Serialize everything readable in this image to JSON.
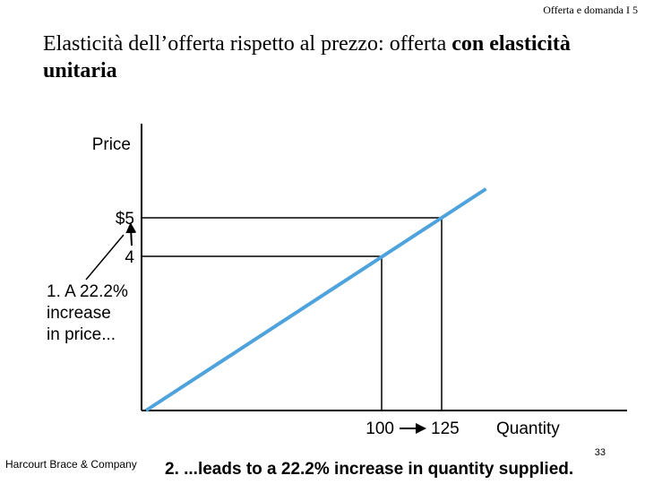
{
  "header": {
    "text": "Offerta e domanda I 5"
  },
  "title": {
    "normal": "Elasticità dell’offerta rispetto al prezzo: offerta ",
    "bold": "con elasticità unitaria"
  },
  "footer": {
    "publisher": "Harcourt Brace & Company",
    "page_number": "33"
  },
  "colors": {
    "supply_line": "#4fa3dc",
    "axes": "#000000"
  },
  "chart_data": {
    "type": "line",
    "ylabel": "Price",
    "xlabel": "Quantity",
    "series": [
      {
        "name": "",
        "x": [
          0,
          125
        ],
        "y": [
          0,
          5
        ]
      }
    ],
    "ticks": {
      "y": [
        {
          "value": 5,
          "label": "$5"
        },
        {
          "value": 4,
          "label": "4"
        }
      ],
      "x": [
        {
          "value": 100,
          "label": "100"
        },
        {
          "value": 125,
          "label": "125"
        }
      ]
    },
    "points": [
      {
        "x": 100,
        "y": 4
      },
      {
        "x": 125,
        "y": 5
      }
    ],
    "annotations": {
      "price_change": [
        "1. A 22.2%",
        "increase",
        "in price..."
      ],
      "quantity_change": "2. ...leads to a 22.2% increase in quantity supplied."
    }
  }
}
